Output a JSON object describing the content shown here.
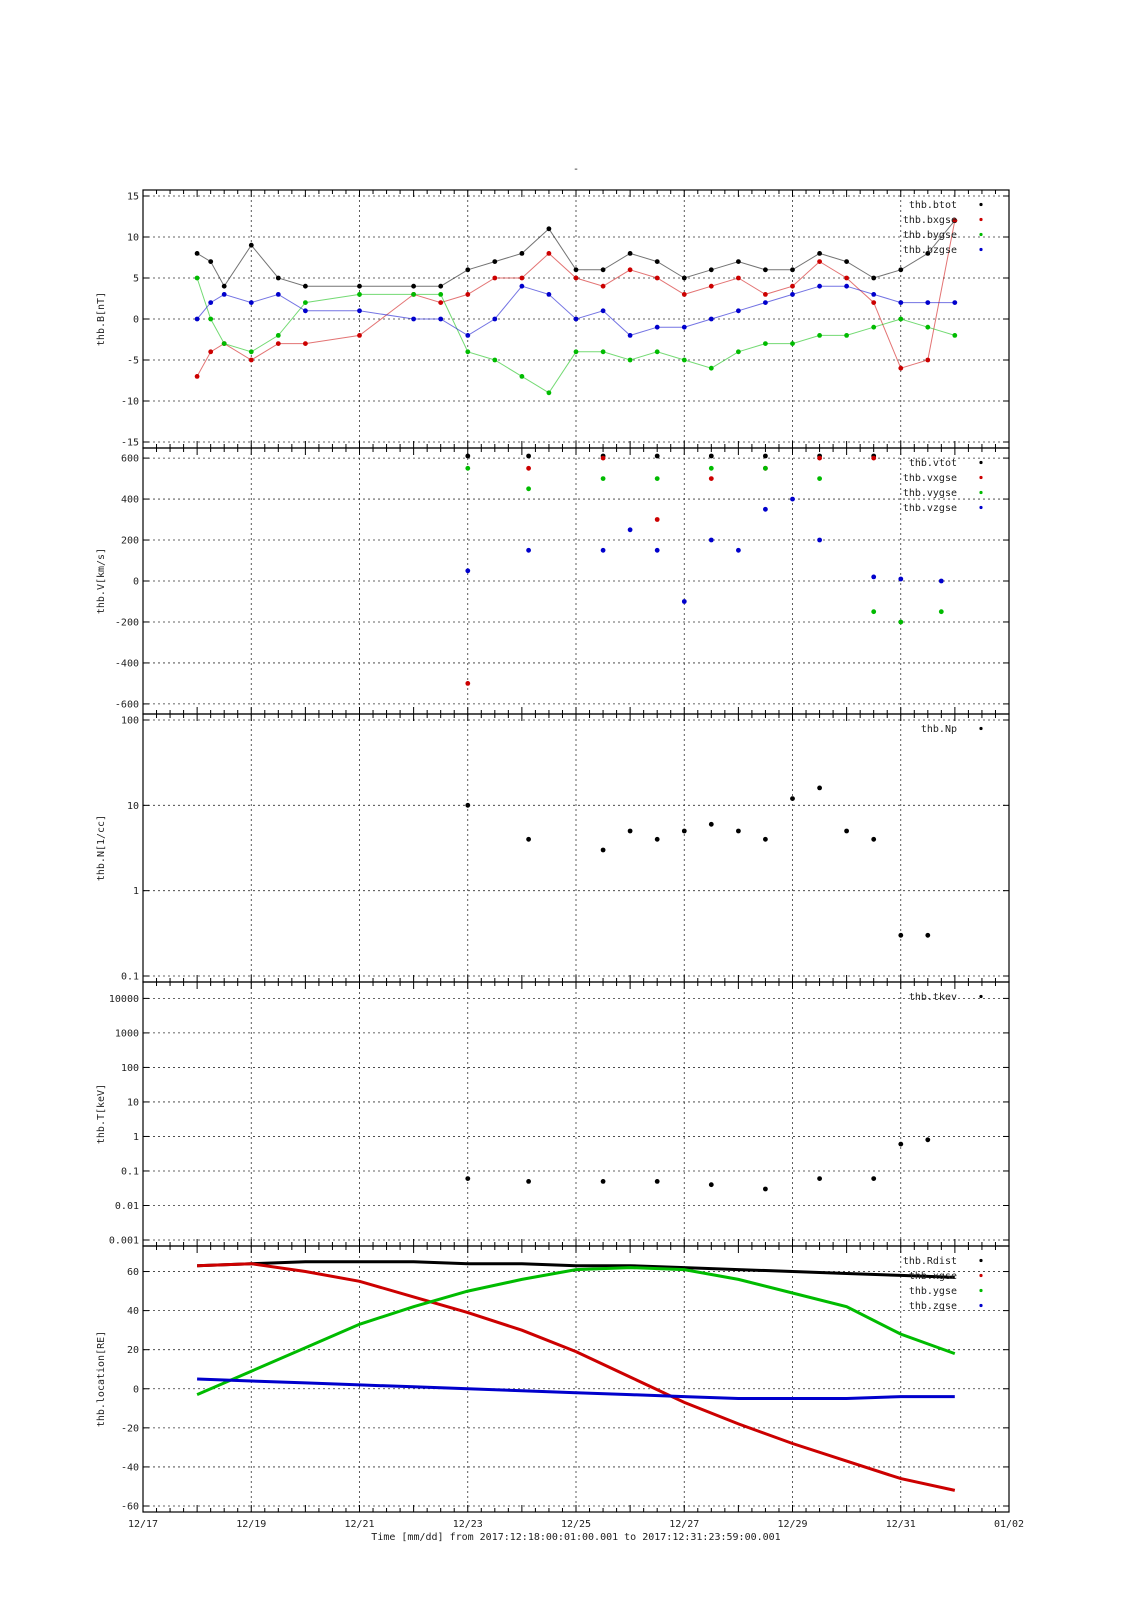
{
  "figure": {
    "title": "-",
    "footer": "Time [mm/dd]  from 2017:12:18:00:01:00.001  to  2017:12:31:23:59:00.001"
  },
  "chart_data": [
    {
      "type": "scatter",
      "ylabel": "thb.B[nT]",
      "ylim": [
        -15,
        15
      ],
      "yticks": [
        "15",
        "10",
        "5",
        "0",
        "-5",
        "-10",
        "-15"
      ],
      "xlim": [
        "12/17",
        "01/02"
      ],
      "grid": true,
      "legend_position": "top-right",
      "series": [
        {
          "name": "thb.btot",
          "color": "#000000",
          "x": [
            "12/18 00:00",
            "12/18 06:00",
            "12/18 12:00",
            "12/19 00:00",
            "12/19 12:00",
            "12/20 00:00",
            "12/21 00:00",
            "12/22 00:00",
            "12/22 12:00",
            "12/23 00:00",
            "12/23 12:00",
            "12/24 00:00",
            "12/24 12:00",
            "12/25 00:00",
            "12/25 12:00",
            "12/26 00:00",
            "12/26 12:00",
            "12/27 00:00",
            "12/27 12:00",
            "12/28 00:00",
            "12/28 12:00",
            "12/29 00:00",
            "12/29 12:00",
            "12/30 00:00",
            "12/30 12:00",
            "12/31 00:00",
            "12/31 12:00",
            "12/31 23:59"
          ],
          "y": [
            8,
            7,
            4,
            9,
            5,
            4,
            4,
            4,
            4,
            6,
            7,
            8,
            11,
            6,
            6,
            8,
            7,
            5,
            6,
            7,
            6,
            6,
            8,
            7,
            5,
            6,
            8,
            12
          ]
        },
        {
          "name": "thb.bxgse",
          "color": "#cc0000",
          "x": [
            "12/18 00:00",
            "12/18 06:00",
            "12/18 12:00",
            "12/19 00:00",
            "12/19 12:00",
            "12/20 00:00",
            "12/21 00:00",
            "12/22 00:00",
            "12/22 12:00",
            "12/23 00:00",
            "12/23 12:00",
            "12/24 00:00",
            "12/24 12:00",
            "12/25 00:00",
            "12/25 12:00",
            "12/26 00:00",
            "12/26 12:00",
            "12/27 00:00",
            "12/27 12:00",
            "12/28 00:00",
            "12/28 12:00",
            "12/29 00:00",
            "12/29 12:00",
            "12/30 00:00",
            "12/30 12:00",
            "12/31 00:00",
            "12/31 12:00",
            "12/31 23:59"
          ],
          "y": [
            -7,
            -4,
            -3,
            -5,
            -3,
            -3,
            -2,
            3,
            2,
            3,
            5,
            5,
            8,
            5,
            4,
            6,
            5,
            3,
            4,
            5,
            3,
            4,
            7,
            5,
            2,
            -6,
            -5,
            12
          ]
        },
        {
          "name": "thb.bygse",
          "color": "#00bb00",
          "x": [
            "12/18 00:00",
            "12/18 06:00",
            "12/18 12:00",
            "12/19 00:00",
            "12/19 12:00",
            "12/20 00:00",
            "12/21 00:00",
            "12/22 00:00",
            "12/22 12:00",
            "12/23 00:00",
            "12/23 12:00",
            "12/24 00:00",
            "12/24 12:00",
            "12/25 00:00",
            "12/25 12:00",
            "12/26 00:00",
            "12/26 12:00",
            "12/27 00:00",
            "12/27 12:00",
            "12/28 00:00",
            "12/28 12:00",
            "12/29 00:00",
            "12/29 12:00",
            "12/30 00:00",
            "12/30 12:00",
            "12/31 00:00",
            "12/31 12:00",
            "12/31 23:59"
          ],
          "y": [
            5,
            0,
            -3,
            -4,
            -2,
            2,
            3,
            3,
            3,
            -4,
            -5,
            -7,
            -9,
            -4,
            -4,
            -5,
            -4,
            -5,
            -6,
            -4,
            -3,
            -3,
            -2,
            -2,
            -1,
            0,
            -1,
            -2
          ]
        },
        {
          "name": "thb.bzgse",
          "color": "#0000cc",
          "x": [
            "12/18 00:00",
            "12/18 06:00",
            "12/18 12:00",
            "12/19 00:00",
            "12/19 12:00",
            "12/20 00:00",
            "12/21 00:00",
            "12/22 00:00",
            "12/22 12:00",
            "12/23 00:00",
            "12/23 12:00",
            "12/24 00:00",
            "12/24 12:00",
            "12/25 00:00",
            "12/25 12:00",
            "12/26 00:00",
            "12/26 12:00",
            "12/27 00:00",
            "12/27 12:00",
            "12/28 00:00",
            "12/28 12:00",
            "12/29 00:00",
            "12/29 12:00",
            "12/30 00:00",
            "12/30 12:00",
            "12/31 00:00",
            "12/31 12:00",
            "12/31 23:59"
          ],
          "y": [
            0,
            2,
            3,
            2,
            3,
            1,
            1,
            0,
            0,
            -2,
            0,
            4,
            3,
            0,
            1,
            -2,
            -1,
            -1,
            0,
            1,
            2,
            3,
            4,
            4,
            3,
            2,
            2,
            2
          ]
        }
      ]
    },
    {
      "type": "scatter",
      "ylabel": "thb.V[km/s]",
      "ylim": [
        -620,
        620
      ],
      "yticks": [
        "600",
        "400",
        "200",
        "0",
        "-200",
        "-400",
        "-600"
      ],
      "xlim": [
        "12/17",
        "01/02"
      ],
      "grid": true,
      "legend_position": "top-right",
      "series": [
        {
          "name": "thb.vtot",
          "color": "#000000",
          "x": [
            "12/23 00:00",
            "12/24 03:00",
            "12/25 12:00",
            "12/26 12:00",
            "12/27 12:00",
            "12/28 12:00",
            "12/29 12:00",
            "12/30 12:00"
          ],
          "y": [
            610,
            610,
            610,
            610,
            610,
            610,
            610,
            610
          ]
        },
        {
          "name": "thb.vxgse",
          "color": "#cc0000",
          "x": [
            "12/23 00:00",
            "12/24 03:00",
            "12/25 12:00",
            "12/26 12:00",
            "12/27 12:00",
            "12/28 12:00",
            "12/29 12:00",
            "12/30 12:00"
          ],
          "y": [
            -500,
            550,
            600,
            300,
            500,
            550,
            600,
            600
          ]
        },
        {
          "name": "thb.vygse",
          "color": "#00bb00",
          "x": [
            "12/23 00:00",
            "12/24 03:00",
            "12/25 12:00",
            "12/26 12:00",
            "12/27 12:00",
            "12/28 12:00",
            "12/29 12:00",
            "12/30 12:00",
            "12/31 00:00",
            "12/31 18:00"
          ],
          "y": [
            550,
            450,
            500,
            500,
            550,
            550,
            500,
            -150,
            -200,
            -150
          ]
        },
        {
          "name": "thb.vzgse",
          "color": "#0000cc",
          "x": [
            "12/23 00:00",
            "12/24 03:00",
            "12/25 12:00",
            "12/26 00:00",
            "12/26 12:00",
            "12/27 00:00",
            "12/27 12:00",
            "12/28 00:00",
            "12/28 12:00",
            "12/29 00:00",
            "12/29 12:00",
            "12/30 12:00",
            "12/31 00:00",
            "12/31 18:00"
          ],
          "y": [
            50,
            150,
            150,
            250,
            150,
            -100,
            200,
            150,
            350,
            400,
            200,
            20,
            10,
            0
          ]
        }
      ]
    },
    {
      "type": "scatter",
      "ylabel": "thb.N[1/cc]",
      "yscale": "log",
      "ylim": [
        0.1,
        100
      ],
      "yticks": [
        "100",
        "10",
        "1",
        "0.1"
      ],
      "xlim": [
        "12/17",
        "01/02"
      ],
      "grid": true,
      "legend_position": "top-right",
      "series": [
        {
          "name": "thb.Np",
          "color": "#000000",
          "x": [
            "12/23 00:00",
            "12/24 03:00",
            "12/25 12:00",
            "12/26 00:00",
            "12/26 12:00",
            "12/27 00:00",
            "12/27 12:00",
            "12/28 00:00",
            "12/28 12:00",
            "12/29 00:00",
            "12/29 12:00",
            "12/30 00:00",
            "12/30 12:00",
            "12/31 00:00",
            "12/31 12:00"
          ],
          "y": [
            10,
            4,
            3,
            5,
            4,
            5,
            6,
            5,
            4,
            12,
            16,
            5,
            4,
            0.3,
            0.3
          ]
        }
      ]
    },
    {
      "type": "scatter",
      "ylabel": "thb.T[keV]",
      "yscale": "log",
      "ylim": [
        0.001,
        20000
      ],
      "yticks": [
        "10000",
        "1000",
        "100",
        "10",
        "1",
        "0.1",
        "0.01",
        "0.001"
      ],
      "xlim": [
        "12/17",
        "01/02"
      ],
      "grid": true,
      "legend_position": "top-right",
      "series": [
        {
          "name": "thb.tkev",
          "color": "#000000",
          "x": [
            "12/23 00:00",
            "12/24 03:00",
            "12/25 12:00",
            "12/26 12:00",
            "12/27 12:00",
            "12/28 12:00",
            "12/29 12:00",
            "12/30 12:00",
            "12/31 00:00",
            "12/31 12:00"
          ],
          "y": [
            0.06,
            0.05,
            0.05,
            0.05,
            0.04,
            0.03,
            0.06,
            0.06,
            0.6,
            0.8
          ]
        }
      ]
    },
    {
      "type": "line",
      "ylabel": "thb.location[RE]",
      "ylim": [
        -60,
        70
      ],
      "yticks": [
        "60",
        "40",
        "20",
        "0",
        "-20",
        "-40",
        "-60"
      ],
      "xlim": [
        "12/17",
        "01/02"
      ],
      "xticks": [
        "12/17",
        "12/19",
        "12/21",
        "12/23",
        "12/25",
        "12/27",
        "12/29",
        "12/31",
        "01/02"
      ],
      "grid": true,
      "legend_position": "top-right",
      "series": [
        {
          "name": "thb.Rdist",
          "color": "#000000",
          "x": [
            "12/18 00:00",
            "12/19 00:00",
            "12/20 00:00",
            "12/21 00:00",
            "12/22 00:00",
            "12/23 00:00",
            "12/24 00:00",
            "12/25 00:00",
            "12/26 00:00",
            "12/27 00:00",
            "12/28 00:00",
            "12/29 00:00",
            "12/30 00:00",
            "12/31 00:00",
            "12/31 23:59"
          ],
          "y": [
            63,
            64,
            65,
            65,
            65,
            64,
            64,
            63,
            63,
            62,
            61,
            60,
            59,
            58,
            57
          ]
        },
        {
          "name": "thb.xgse",
          "color": "#cc0000",
          "x": [
            "12/18 00:00",
            "12/19 00:00",
            "12/20 00:00",
            "12/21 00:00",
            "12/22 00:00",
            "12/23 00:00",
            "12/24 00:00",
            "12/25 00:00",
            "12/26 00:00",
            "12/27 00:00",
            "12/28 00:00",
            "12/29 00:00",
            "12/30 00:00",
            "12/31 00:00",
            "12/31 23:59"
          ],
          "y": [
            63,
            64,
            60,
            55,
            47,
            39,
            30,
            19,
            6,
            -7,
            -18,
            -28,
            -37,
            -46,
            -52
          ]
        },
        {
          "name": "thb.ygse",
          "color": "#00bb00",
          "x": [
            "12/18 00:00",
            "12/19 00:00",
            "12/20 00:00",
            "12/21 00:00",
            "12/22 00:00",
            "12/23 00:00",
            "12/24 00:00",
            "12/25 00:00",
            "12/26 00:00",
            "12/27 00:00",
            "12/28 00:00",
            "12/29 00:00",
            "12/30 00:00",
            "12/31 00:00",
            "12/31 23:59"
          ],
          "y": [
            -3,
            9,
            21,
            33,
            42,
            50,
            56,
            61,
            62,
            61,
            56,
            49,
            42,
            28,
            18
          ]
        },
        {
          "name": "thb.zgse",
          "color": "#0000cc",
          "x": [
            "12/18 00:00",
            "12/19 00:00",
            "12/20 00:00",
            "12/21 00:00",
            "12/22 00:00",
            "12/23 00:00",
            "12/24 00:00",
            "12/25 00:00",
            "12/26 00:00",
            "12/27 00:00",
            "12/28 00:00",
            "12/29 00:00",
            "12/30 00:00",
            "12/31 00:00",
            "12/31 23:59"
          ],
          "y": [
            5,
            4,
            3,
            2,
            1,
            0,
            -1,
            -2,
            -3,
            -4,
            -5,
            -5,
            -5,
            -4,
            -4
          ]
        }
      ]
    }
  ]
}
